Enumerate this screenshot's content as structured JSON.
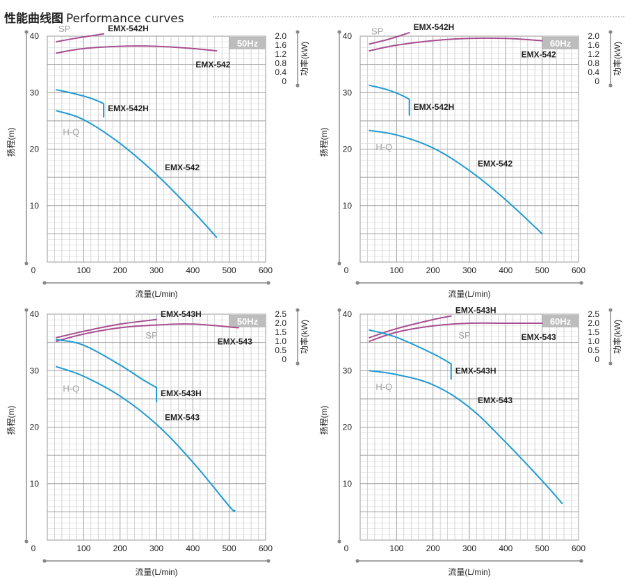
{
  "header": {
    "title": "性能曲线图",
    "subtitle": "Performance curves"
  },
  "chart_data": [
    {
      "type": "line",
      "frequency_badge": "50Hz",
      "xlabel": "流量(L/min)",
      "ylabel": "扬程(m)",
      "y2label": "功率(kW)",
      "xlim": [
        0,
        600
      ],
      "ylim": [
        0,
        40
      ],
      "y2lim": [
        0,
        2.0
      ],
      "xticks": [
        0,
        100,
        200,
        300,
        400,
        500,
        600
      ],
      "yticks": [
        10,
        20,
        30,
        40
      ],
      "y2ticks": [
        "0",
        "0.4",
        "0.8",
        "1.2",
        "1.6",
        "2.0"
      ],
      "grid": true,
      "curve_group_labels": {
        "sp": "SP",
        "hq": "H-Q"
      },
      "series": [
        {
          "name": "EMX-542H",
          "group": "SP",
          "x": [
            25,
            75,
            155
          ],
          "y": [
            1.75,
            1.9,
            2.1
          ]
        },
        {
          "name": "EMX-542",
          "group": "SP",
          "x": [
            25,
            100,
            200,
            300,
            400,
            465
          ],
          "y": [
            1.25,
            1.45,
            1.55,
            1.55,
            1.45,
            1.35
          ]
        },
        {
          "name": "EMX-542H",
          "group": "H-Q",
          "x": [
            25,
            75,
            120,
            150,
            155,
            155
          ],
          "y": [
            30.5,
            29.8,
            29.0,
            28.2,
            28.0,
            25.7
          ]
        },
        {
          "name": "EMX-542",
          "group": "H-Q",
          "x": [
            25,
            100,
            200,
            300,
            400,
            465
          ],
          "y": [
            26.8,
            25.2,
            21.0,
            15.5,
            9.0,
            4.4
          ]
        }
      ]
    },
    {
      "type": "line",
      "frequency_badge": "60Hz",
      "xlabel": "流量(L/min)",
      "ylabel": "扬程(m)",
      "y2label": "功率(kW)",
      "xlim": [
        0,
        600
      ],
      "ylim": [
        0,
        40
      ],
      "y2lim": [
        0,
        2.0
      ],
      "xticks": [
        0,
        100,
        200,
        300,
        400,
        500,
        600
      ],
      "yticks": [
        10,
        20,
        30,
        40
      ],
      "y2ticks": [
        "0",
        "0.4",
        "0.8",
        "1.2",
        "1.6",
        "2.0"
      ],
      "grid": true,
      "curve_group_labels": {
        "sp": "SP",
        "hq": "H-Q"
      },
      "series": [
        {
          "name": "EMX-542H",
          "group": "SP",
          "x": [
            25,
            75,
            135
          ],
          "y": [
            1.65,
            1.85,
            2.15
          ]
        },
        {
          "name": "EMX-542",
          "group": "SP",
          "x": [
            25,
            100,
            200,
            300,
            400,
            500
          ],
          "y": [
            1.35,
            1.6,
            1.8,
            1.9,
            1.9,
            1.8
          ]
        },
        {
          "name": "EMX-542H",
          "group": "H-Q",
          "x": [
            25,
            75,
            115,
            135,
            135
          ],
          "y": [
            31.3,
            30.5,
            29.5,
            28.8,
            26.0
          ]
        },
        {
          "name": "EMX-542",
          "group": "H-Q",
          "x": [
            25,
            100,
            200,
            300,
            400,
            500
          ],
          "y": [
            23.3,
            22.5,
            20.2,
            16.2,
            11.0,
            5.0
          ]
        }
      ]
    },
    {
      "type": "line",
      "frequency_badge": "50Hz",
      "xlabel": "流量(L/min)",
      "ylabel": "扬程(m)",
      "y2label": "功率(kW)",
      "xlim": [
        0,
        600
      ],
      "ylim": [
        0,
        40
      ],
      "y2lim": [
        0,
        2.5
      ],
      "xticks": [
        0,
        100,
        200,
        300,
        400,
        500,
        600
      ],
      "yticks": [
        10,
        20,
        30,
        40
      ],
      "y2ticks": [
        "0",
        "0.5",
        "1.0",
        "1.5",
        "2.0",
        "2.5"
      ],
      "grid": true,
      "curve_group_labels": {
        "sp": "SP",
        "hq": "H-Q"
      },
      "series": [
        {
          "name": "EMX-543H",
          "group": "SP",
          "x": [
            25,
            100,
            200,
            300
          ],
          "y": [
            1.2,
            1.55,
            1.95,
            2.2
          ]
        },
        {
          "name": "EMX-543",
          "group": "SP",
          "x": [
            25,
            100,
            200,
            300,
            400,
            525
          ],
          "y": [
            1.0,
            1.4,
            1.75,
            1.9,
            1.95,
            1.75
          ]
        },
        {
          "name": "EMX-543H",
          "group": "H-Q",
          "x": [
            25,
            100,
            200,
            260,
            300,
            300
          ],
          "y": [
            35.5,
            34.5,
            31.0,
            28.5,
            27.0,
            24.5
          ]
        },
        {
          "name": "EMX-543",
          "group": "H-Q",
          "x": [
            25,
            100,
            200,
            300,
            400,
            500,
            515
          ],
          "y": [
            30.7,
            29.0,
            25.5,
            20.5,
            13.8,
            6.0,
            5.2
          ]
        }
      ]
    },
    {
      "type": "line",
      "frequency_badge": "60Hz",
      "xlabel": "流量(L/min)",
      "ylabel": "扬程(m)",
      "y2label": "功率(kW)",
      "xlim": [
        0,
        600
      ],
      "ylim": [
        0,
        40
      ],
      "y2lim": [
        0,
        2.5
      ],
      "xticks": [
        0,
        100,
        200,
        300,
        400,
        500,
        600
      ],
      "yticks": [
        10,
        20,
        30,
        40
      ],
      "y2ticks": [
        "0",
        "0.5",
        "1.0",
        "1.5",
        "2.0",
        "2.5"
      ],
      "grid": true,
      "curve_group_labels": {
        "sp": "SP",
        "hq": "H-Q"
      },
      "series": [
        {
          "name": "EMX-543H",
          "group": "SP",
          "x": [
            25,
            100,
            200,
            250
          ],
          "y": [
            1.2,
            1.7,
            2.2,
            2.4
          ]
        },
        {
          "name": "EMX-543",
          "group": "SP",
          "x": [
            25,
            100,
            200,
            300,
            400,
            500
          ],
          "y": [
            1.0,
            1.5,
            1.85,
            2.0,
            2.0,
            2.0
          ]
        },
        {
          "name": "EMX-543H",
          "group": "H-Q",
          "x": [
            25,
            100,
            200,
            250,
            250
          ],
          "y": [
            37.2,
            35.9,
            33.0,
            31.2,
            28.5
          ]
        },
        {
          "name": "EMX-543",
          "group": "H-Q",
          "x": [
            25,
            100,
            200,
            300,
            400,
            500,
            555
          ],
          "y": [
            30.0,
            29.3,
            27.5,
            23.5,
            17.3,
            10.5,
            6.5
          ]
        }
      ]
    }
  ]
}
